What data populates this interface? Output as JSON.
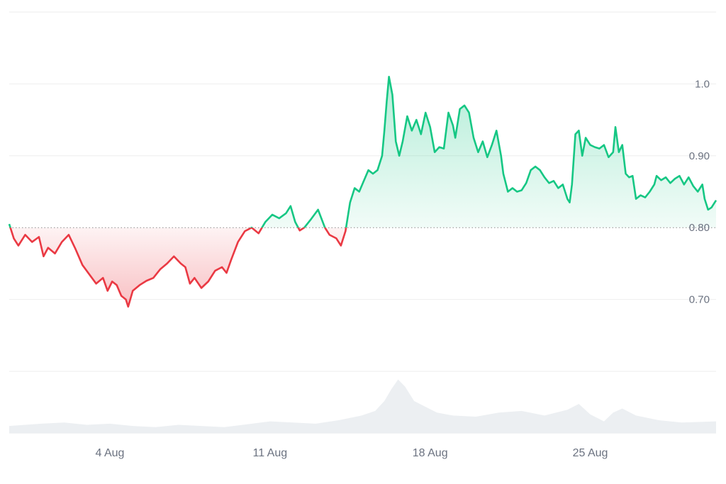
{
  "chart_data": {
    "type": "line",
    "title": "",
    "xlabel": "",
    "ylabel": "",
    "baseline": 0.8,
    "x_ticks": [
      "4 Aug",
      "11 Aug",
      "18 Aug",
      "25 Aug"
    ],
    "x_tick_days": [
      4,
      11,
      18,
      25
    ],
    "x_range_days": [
      -0.4,
      30.5
    ],
    "y_ticks": [
      {
        "value": 0.7,
        "label": "0.70"
      },
      {
        "value": 0.8,
        "label": "0.80"
      },
      {
        "value": 0.9,
        "label": "0.90"
      },
      {
        "value": 1.0,
        "label": "1.0"
      }
    ],
    "ylim": [
      0.6,
      1.1
    ],
    "colors": {
      "up_line": "#16c784",
      "down_line": "#ea3943",
      "up_fill": "#16c784",
      "down_fill": "#ea3943",
      "volume_fill": "#eceff2",
      "grid": "#eeeeee",
      "baseline": "#8c8c8c"
    },
    "price_series": {
      "name": "",
      "points": [
        [
          -0.4,
          0.805
        ],
        [
          -0.2,
          0.785
        ],
        [
          0.0,
          0.775
        ],
        [
          0.3,
          0.79
        ],
        [
          0.6,
          0.78
        ],
        [
          0.9,
          0.787
        ],
        [
          1.1,
          0.76
        ],
        [
          1.3,
          0.772
        ],
        [
          1.6,
          0.764
        ],
        [
          1.9,
          0.78
        ],
        [
          2.2,
          0.79
        ],
        [
          2.5,
          0.77
        ],
        [
          2.8,
          0.748
        ],
        [
          3.1,
          0.735
        ],
        [
          3.4,
          0.722
        ],
        [
          3.7,
          0.73
        ],
        [
          3.9,
          0.712
        ],
        [
          4.1,
          0.725
        ],
        [
          4.3,
          0.72
        ],
        [
          4.5,
          0.705
        ],
        [
          4.7,
          0.7
        ],
        [
          4.8,
          0.69
        ],
        [
          5.0,
          0.712
        ],
        [
          5.3,
          0.72
        ],
        [
          5.6,
          0.726
        ],
        [
          5.9,
          0.73
        ],
        [
          6.2,
          0.742
        ],
        [
          6.5,
          0.75
        ],
        [
          6.8,
          0.76
        ],
        [
          7.1,
          0.75
        ],
        [
          7.3,
          0.745
        ],
        [
          7.5,
          0.722
        ],
        [
          7.7,
          0.73
        ],
        [
          8.0,
          0.716
        ],
        [
          8.3,
          0.725
        ],
        [
          8.6,
          0.74
        ],
        [
          8.9,
          0.745
        ],
        [
          9.1,
          0.737
        ],
        [
          9.3,
          0.755
        ],
        [
          9.6,
          0.78
        ],
        [
          9.9,
          0.795
        ],
        [
          10.2,
          0.8
        ],
        [
          10.5,
          0.792
        ],
        [
          10.8,
          0.808
        ],
        [
          11.1,
          0.818
        ],
        [
          11.4,
          0.813
        ],
        [
          11.7,
          0.82
        ],
        [
          11.9,
          0.83
        ],
        [
          12.1,
          0.808
        ],
        [
          12.3,
          0.796
        ],
        [
          12.5,
          0.8
        ],
        [
          12.8,
          0.812
        ],
        [
          13.1,
          0.825
        ],
        [
          13.4,
          0.8
        ],
        [
          13.6,
          0.79
        ],
        [
          13.9,
          0.785
        ],
        [
          14.1,
          0.775
        ],
        [
          14.3,
          0.795
        ],
        [
          14.5,
          0.835
        ],
        [
          14.7,
          0.855
        ],
        [
          14.9,
          0.85
        ],
        [
          15.1,
          0.865
        ],
        [
          15.3,
          0.88
        ],
        [
          15.5,
          0.875
        ],
        [
          15.7,
          0.88
        ],
        [
          15.9,
          0.9
        ],
        [
          16.0,
          0.935
        ],
        [
          16.1,
          0.975
        ],
        [
          16.2,
          1.01
        ],
        [
          16.35,
          0.985
        ],
        [
          16.5,
          0.92
        ],
        [
          16.65,
          0.9
        ],
        [
          16.8,
          0.92
        ],
        [
          17.0,
          0.955
        ],
        [
          17.2,
          0.935
        ],
        [
          17.4,
          0.95
        ],
        [
          17.6,
          0.93
        ],
        [
          17.8,
          0.96
        ],
        [
          18.0,
          0.94
        ],
        [
          18.2,
          0.905
        ],
        [
          18.4,
          0.912
        ],
        [
          18.6,
          0.91
        ],
        [
          18.8,
          0.96
        ],
        [
          19.0,
          0.942
        ],
        [
          19.1,
          0.925
        ],
        [
          19.3,
          0.965
        ],
        [
          19.5,
          0.97
        ],
        [
          19.7,
          0.96
        ],
        [
          19.9,
          0.925
        ],
        [
          20.1,
          0.905
        ],
        [
          20.3,
          0.92
        ],
        [
          20.5,
          0.898
        ],
        [
          20.7,
          0.915
        ],
        [
          20.9,
          0.935
        ],
        [
          21.1,
          0.9
        ],
        [
          21.2,
          0.875
        ],
        [
          21.4,
          0.85
        ],
        [
          21.6,
          0.855
        ],
        [
          21.8,
          0.85
        ],
        [
          22.0,
          0.852
        ],
        [
          22.2,
          0.862
        ],
        [
          22.4,
          0.88
        ],
        [
          22.6,
          0.885
        ],
        [
          22.8,
          0.88
        ],
        [
          23.0,
          0.87
        ],
        [
          23.2,
          0.862
        ],
        [
          23.4,
          0.865
        ],
        [
          23.6,
          0.855
        ],
        [
          23.8,
          0.86
        ],
        [
          24.0,
          0.84
        ],
        [
          24.1,
          0.835
        ],
        [
          24.2,
          0.86
        ],
        [
          24.35,
          0.93
        ],
        [
          24.5,
          0.935
        ],
        [
          24.65,
          0.9
        ],
        [
          24.8,
          0.925
        ],
        [
          25.0,
          0.915
        ],
        [
          25.2,
          0.912
        ],
        [
          25.4,
          0.91
        ],
        [
          25.6,
          0.915
        ],
        [
          25.8,
          0.898
        ],
        [
          26.0,
          0.905
        ],
        [
          26.1,
          0.94
        ],
        [
          26.25,
          0.905
        ],
        [
          26.4,
          0.915
        ],
        [
          26.55,
          0.875
        ],
        [
          26.7,
          0.87
        ],
        [
          26.85,
          0.872
        ],
        [
          27.0,
          0.84
        ],
        [
          27.2,
          0.845
        ],
        [
          27.4,
          0.842
        ],
        [
          27.6,
          0.85
        ],
        [
          27.8,
          0.86
        ],
        [
          27.9,
          0.872
        ],
        [
          28.1,
          0.866
        ],
        [
          28.3,
          0.87
        ],
        [
          28.5,
          0.862
        ],
        [
          28.7,
          0.868
        ],
        [
          28.9,
          0.872
        ],
        [
          29.1,
          0.86
        ],
        [
          29.3,
          0.87
        ],
        [
          29.5,
          0.858
        ],
        [
          29.7,
          0.85
        ],
        [
          29.9,
          0.86
        ],
        [
          30.0,
          0.84
        ],
        [
          30.15,
          0.825
        ],
        [
          30.3,
          0.828
        ],
        [
          30.5,
          0.838
        ]
      ]
    },
    "volume_series": {
      "name": "",
      "points": [
        [
          -0.4,
          0.12
        ],
        [
          1.0,
          0.16
        ],
        [
          2.0,
          0.18
        ],
        [
          3.0,
          0.14
        ],
        [
          4.0,
          0.16
        ],
        [
          5.0,
          0.12
        ],
        [
          6.0,
          0.1
        ],
        [
          7.0,
          0.14
        ],
        [
          8.0,
          0.12
        ],
        [
          9.0,
          0.1
        ],
        [
          10.0,
          0.15
        ],
        [
          11.0,
          0.2
        ],
        [
          12.0,
          0.18
        ],
        [
          13.0,
          0.16
        ],
        [
          14.0,
          0.22
        ],
        [
          15.0,
          0.3
        ],
        [
          15.6,
          0.38
        ],
        [
          16.0,
          0.55
        ],
        [
          16.3,
          0.75
        ],
        [
          16.6,
          0.92
        ],
        [
          16.9,
          0.8
        ],
        [
          17.3,
          0.55
        ],
        [
          17.8,
          0.45
        ],
        [
          18.3,
          0.35
        ],
        [
          19.0,
          0.3
        ],
        [
          20.0,
          0.28
        ],
        [
          21.0,
          0.35
        ],
        [
          22.0,
          0.38
        ],
        [
          23.0,
          0.3
        ],
        [
          24.0,
          0.4
        ],
        [
          24.5,
          0.5
        ],
        [
          25.0,
          0.32
        ],
        [
          25.6,
          0.2
        ],
        [
          26.0,
          0.35
        ],
        [
          26.4,
          0.42
        ],
        [
          27.0,
          0.3
        ],
        [
          28.0,
          0.22
        ],
        [
          29.0,
          0.18
        ],
        [
          30.5,
          0.2
        ]
      ]
    }
  }
}
